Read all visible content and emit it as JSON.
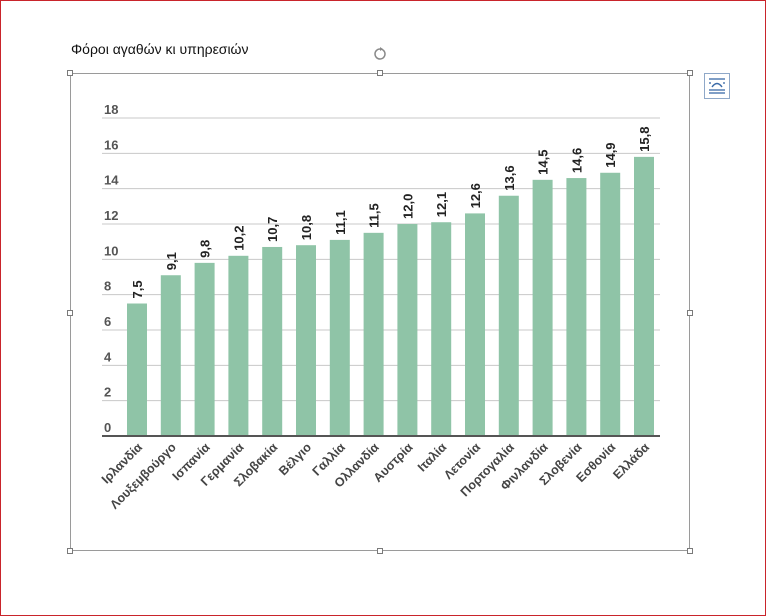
{
  "document": {
    "caption": "Φόροι αγαθών κι υπηρεσιών"
  },
  "chart_data": {
    "type": "bar",
    "title": "",
    "xlabel": "",
    "ylabel": "",
    "ylim": [
      0,
      18
    ],
    "yticks": [
      "0",
      "2",
      "4",
      "6",
      "8",
      "10",
      "12",
      "14",
      "16",
      "18"
    ],
    "grid": true,
    "bar_color": "#8fc4a7",
    "categories": [
      "Ιρλανδία",
      "Λουξεμβούργο",
      "Ισπανία",
      "Γερμανία",
      "Σλοβακία",
      "Βέλγιο",
      "Γαλλία",
      "Ολλανδία",
      "Αυστρία",
      "Ιταλία",
      "Λετονία",
      "Πορτογαλία",
      "Φινλανδία",
      "Σλοβενία",
      "Εσθονία",
      "Ελλάδα"
    ],
    "values": [
      7.5,
      9.1,
      9.8,
      10.2,
      10.7,
      10.8,
      11.1,
      11.5,
      12.0,
      12.1,
      12.6,
      13.6,
      14.5,
      14.6,
      14.9,
      15.8
    ],
    "data_labels": [
      "7,5",
      "9,1",
      "9,8",
      "10,2",
      "10,7",
      "10,8",
      "11,1",
      "11,5",
      "12,0",
      "12,1",
      "12,6",
      "13,6",
      "14,5",
      "14,6",
      "14,9",
      "15,8"
    ]
  },
  "colors": {
    "frame_border": "#c9242b",
    "selection_border": "#9a9a9a",
    "grid": "#c8c8c8"
  }
}
